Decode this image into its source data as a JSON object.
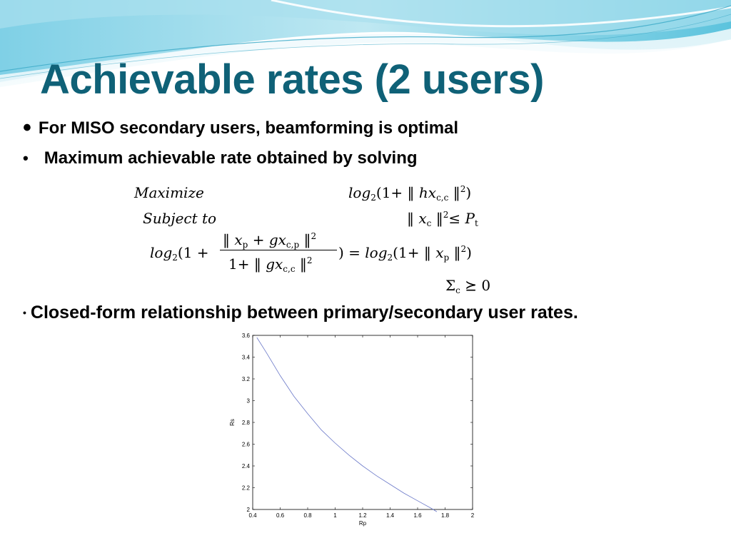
{
  "slide": {
    "title": "Achievable rates (2 users)",
    "bullets": [
      "For MISO secondary users,  beamforming is optimal",
      "Maximum achievable rate obtained by solving",
      "Closed-form relationship between primary/secondary user rates."
    ],
    "bullet_glyph": "•",
    "colors": {
      "title": "#0f6177",
      "banner_light": "#dff2f7",
      "banner_mid": "#9fdbea",
      "banner_dark": "#4cb8d4"
    }
  },
  "equation": {
    "maximize_label": "Maximize",
    "subject_label": "Subject to",
    "log": "log",
    "sub2": "2",
    "one_plus": "(1+",
    "norm": "‖",
    "h": "h",
    "x": "x",
    "g": "g",
    "sub_cc": "c,c",
    "sub_cp": "c,p",
    "sub_c": "c",
    "sub_p": "p",
    "sub_t": "t",
    "sq": "2",
    "close": ")",
    "le": "≤",
    "P": "P",
    "one_frac": "(1 +",
    "plus": "+",
    "den_one": "1+",
    "eq_sign": ") =",
    "sigma": "Σ",
    "succeq_zero": "⪰ 0"
  },
  "chart_data": {
    "type": "line",
    "title": "",
    "xlabel": "Rp",
    "ylabel": "Rs",
    "xlim": [
      0.4,
      2
    ],
    "ylim": [
      2,
      3.6
    ],
    "xticks": [
      "0.4",
      "0.6",
      "0.8",
      "1",
      "1.2",
      "1.4",
      "1.6",
      "1.8",
      "2"
    ],
    "yticks": [
      "2",
      "2.2",
      "2.4",
      "2.6",
      "2.8",
      "3",
      "3.2",
      "3.4",
      "3.6"
    ],
    "grid": false,
    "series": [
      {
        "x": [
          0.43,
          0.5,
          0.6,
          0.7,
          0.8,
          0.9,
          1.0,
          1.1,
          1.2,
          1.3,
          1.4,
          1.5,
          1.6,
          1.7,
          1.74
        ],
        "y": [
          3.58,
          3.44,
          3.23,
          3.04,
          2.88,
          2.73,
          2.61,
          2.5,
          2.4,
          2.31,
          2.23,
          2.15,
          2.08,
          2.01,
          1.98
        ],
        "color": "#6a78c8"
      }
    ]
  }
}
